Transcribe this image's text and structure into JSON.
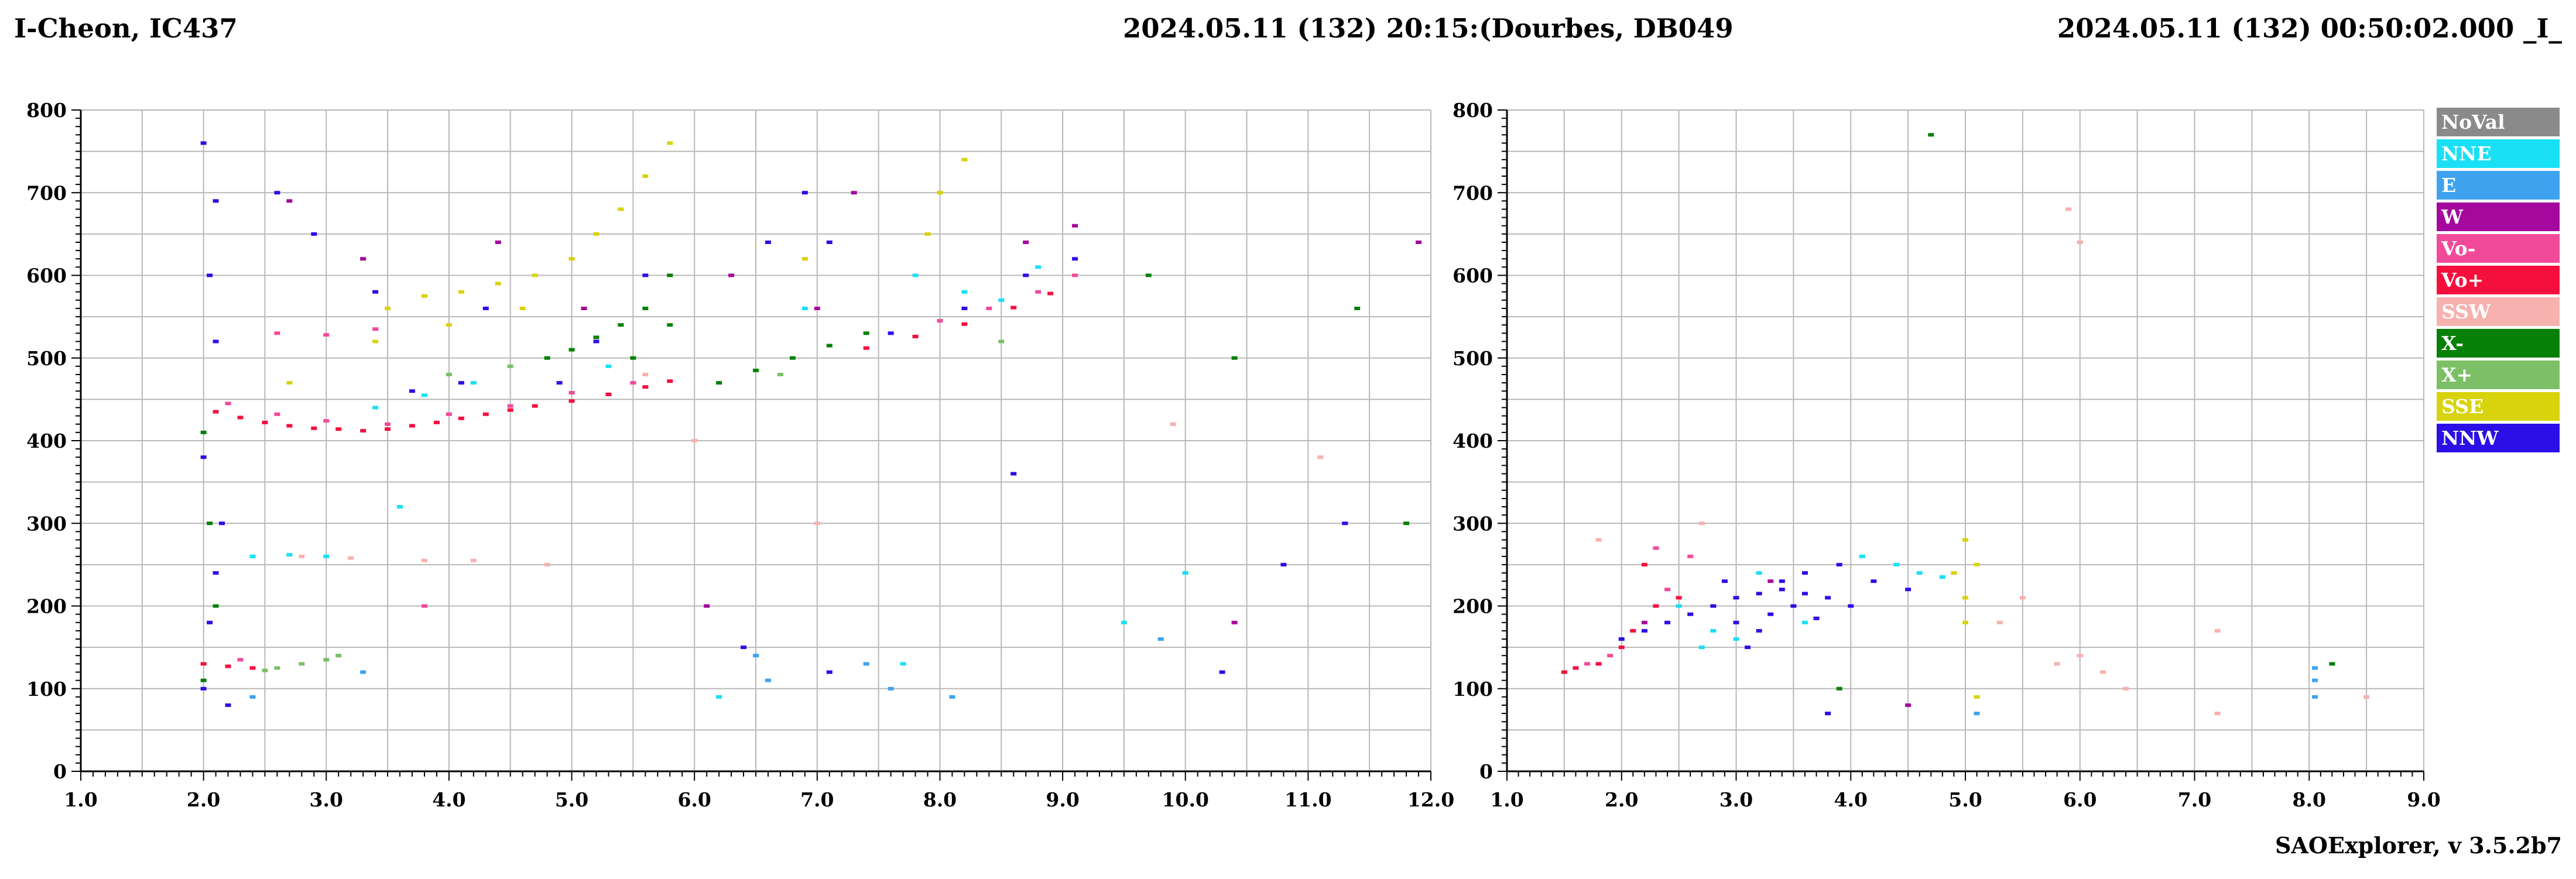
{
  "header": {
    "left": "I-Cheon, IC437",
    "center": "2024.05.11 (132) 20:15:(Dourbes, DB049",
    "right": "2024.05.11 (132) 00:50:02.000 _I_"
  },
  "footer": "SAOExplorer, v 3.5.2b7",
  "legend": [
    {
      "label": "NoVal",
      "color": "#8a8a8a"
    },
    {
      "label": "NNE",
      "color": "#19e0f5"
    },
    {
      "label": "E",
      "color": "#3ea2ee"
    },
    {
      "label": "W",
      "color": "#a4089c"
    },
    {
      "label": "Vo-",
      "color": "#f24a9a"
    },
    {
      "label": "Vo+",
      "color": "#f50f3d"
    },
    {
      "label": "SSW",
      "color": "#f7b1ae"
    },
    {
      "label": "X-",
      "color": "#078007"
    },
    {
      "label": "X+",
      "color": "#7cbf66"
    },
    {
      "label": "SSE",
      "color": "#d8d30c"
    },
    {
      "label": "NNW",
      "color": "#2b0fe6"
    }
  ],
  "chart_data": [
    {
      "type": "scatter",
      "xlim": [
        1.0,
        12.0
      ],
      "ylim": [
        0,
        800
      ],
      "x_ticks": [
        "1.0",
        "2.0",
        "3.0",
        "4.0",
        "5.0",
        "6.0",
        "7.0",
        "8.0",
        "9.0",
        "10.0",
        "11.0",
        "12.0"
      ],
      "y_ticks": [
        "0",
        "100",
        "200",
        "300",
        "400",
        "500",
        "600",
        "700",
        "800"
      ],
      "grid": true,
      "series": [
        {
          "color": "#f50f3d",
          "points": [
            [
              2.1,
              435
            ],
            [
              2.3,
              428
            ],
            [
              2.5,
              422
            ],
            [
              2.7,
              418
            ],
            [
              2.9,
              415
            ],
            [
              3.1,
              414
            ],
            [
              3.3,
              412
            ],
            [
              3.5,
              414
            ],
            [
              3.7,
              418
            ],
            [
              3.9,
              422
            ],
            [
              4.1,
              427
            ],
            [
              4.3,
              432
            ],
            [
              4.5,
              437
            ],
            [
              4.7,
              442
            ],
            [
              5.0,
              448
            ],
            [
              5.3,
              456
            ],
            [
              5.6,
              465
            ],
            [
              5.8,
              472
            ],
            [
              2.0,
              130
            ],
            [
              2.2,
              127
            ],
            [
              2.4,
              125
            ],
            [
              7.4,
              512
            ],
            [
              7.8,
              526
            ],
            [
              8.2,
              541
            ],
            [
              8.6,
              561
            ],
            [
              8.9,
              578
            ]
          ]
        },
        {
          "color": "#f24a9a",
          "points": [
            [
              2.2,
              445
            ],
            [
              2.6,
              432
            ],
            [
              3.0,
              424
            ],
            [
              3.5,
              420
            ],
            [
              4.0,
              432
            ],
            [
              4.5,
              442
            ],
            [
              5.0,
              458
            ],
            [
              5.5,
              470
            ],
            [
              2.6,
              530
            ],
            [
              3.0,
              528
            ],
            [
              3.4,
              535
            ],
            [
              7.6,
              530
            ],
            [
              8.0,
              545
            ],
            [
              8.4,
              560
            ],
            [
              8.8,
              580
            ],
            [
              9.1,
              600
            ],
            [
              2.3,
              135
            ],
            [
              3.8,
              200
            ]
          ]
        },
        {
          "color": "#2b0fe6",
          "points": [
            [
              2.0,
              760
            ],
            [
              2.1,
              690
            ],
            [
              2.05,
              600
            ],
            [
              2.1,
              520
            ],
            [
              2.0,
              380
            ],
            [
              2.15,
              300
            ],
            [
              2.1,
              240
            ],
            [
              2.05,
              180
            ],
            [
              2.0,
              100
            ],
            [
              2.2,
              80
            ],
            [
              2.6,
              700
            ],
            [
              2.9,
              650
            ],
            [
              3.4,
              580
            ],
            [
              3.7,
              460
            ],
            [
              4.1,
              470
            ],
            [
              4.3,
              560
            ],
            [
              4.9,
              470
            ],
            [
              5.2,
              520
            ],
            [
              5.6,
              600
            ],
            [
              6.6,
              640
            ],
            [
              6.9,
              700
            ],
            [
              7.1,
              640
            ],
            [
              7.6,
              530
            ],
            [
              8.2,
              560
            ],
            [
              8.7,
              600
            ],
            [
              9.1,
              620
            ],
            [
              6.4,
              150
            ],
            [
              7.1,
              120
            ],
            [
              8.6,
              360
            ],
            [
              10.3,
              120
            ],
            [
              10.8,
              250
            ],
            [
              11.3,
              300
            ]
          ]
        },
        {
          "color": "#d8d30c",
          "points": [
            [
              3.5,
              560
            ],
            [
              3.8,
              575
            ],
            [
              4.1,
              580
            ],
            [
              4.4,
              590
            ],
            [
              4.7,
              600
            ],
            [
              5.0,
              620
            ],
            [
              5.2,
              650
            ],
            [
              5.4,
              680
            ],
            [
              5.6,
              720
            ],
            [
              5.8,
              760
            ],
            [
              3.4,
              520
            ],
            [
              4.0,
              540
            ],
            [
              4.6,
              560
            ],
            [
              8.0,
              700
            ],
            [
              8.2,
              740
            ],
            [
              7.9,
              650
            ],
            [
              2.7,
              470
            ],
            [
              6.9,
              620
            ]
          ]
        },
        {
          "color": "#078007",
          "points": [
            [
              4.8,
              500
            ],
            [
              5.0,
              510
            ],
            [
              5.2,
              525
            ],
            [
              5.4,
              540
            ],
            [
              5.6,
              560
            ],
            [
              5.8,
              600
            ],
            [
              5.8,
              540
            ],
            [
              5.5,
              500
            ],
            [
              6.2,
              470
            ],
            [
              6.5,
              485
            ],
            [
              6.8,
              500
            ],
            [
              7.1,
              515
            ],
            [
              7.4,
              530
            ],
            [
              2.0,
              410
            ],
            [
              2.05,
              300
            ],
            [
              2.1,
              200
            ],
            [
              2.0,
              110
            ],
            [
              10.4,
              500
            ],
            [
              11.4,
              560
            ],
            [
              11.8,
              300
            ],
            [
              9.7,
              600
            ]
          ]
        },
        {
          "color": "#19e0f5",
          "points": [
            [
              2.4,
              260
            ],
            [
              2.7,
              262
            ],
            [
              3.0,
              260
            ],
            [
              3.4,
              440
            ],
            [
              3.8,
              455
            ],
            [
              4.2,
              470
            ],
            [
              7.8,
              600
            ],
            [
              8.2,
              580
            ],
            [
              8.5,
              570
            ],
            [
              8.8,
              610
            ],
            [
              6.9,
              560
            ],
            [
              5.3,
              490
            ],
            [
              3.6,
              320
            ],
            [
              9.5,
              180
            ],
            [
              10.0,
              240
            ],
            [
              7.7,
              130
            ],
            [
              6.2,
              90
            ]
          ]
        },
        {
          "color": "#7cbf66",
          "points": [
            [
              2.6,
              125
            ],
            [
              2.8,
              130
            ],
            [
              3.0,
              135
            ],
            [
              3.1,
              140
            ],
            [
              2.5,
              122
            ],
            [
              4.0,
              480
            ],
            [
              4.5,
              490
            ],
            [
              6.7,
              480
            ],
            [
              8.5,
              520
            ]
          ]
        },
        {
          "color": "#a4089c",
          "points": [
            [
              2.7,
              690
            ],
            [
              3.3,
              620
            ],
            [
              4.4,
              640
            ],
            [
              5.1,
              560
            ],
            [
              6.3,
              600
            ],
            [
              7.0,
              560
            ],
            [
              7.3,
              700
            ],
            [
              8.7,
              640
            ],
            [
              9.1,
              660
            ],
            [
              6.1,
              200
            ],
            [
              10.4,
              180
            ],
            [
              11.9,
              640
            ]
          ]
        },
        {
          "color": "#f7b1ae",
          "points": [
            [
              2.8,
              260
            ],
            [
              3.2,
              258
            ],
            [
              3.8,
              255
            ],
            [
              4.2,
              255
            ],
            [
              4.8,
              250
            ],
            [
              5.6,
              480
            ],
            [
              6.0,
              400
            ],
            [
              7.0,
              300
            ],
            [
              9.9,
              420
            ],
            [
              11.1,
              380
            ]
          ]
        },
        {
          "color": "#3ea2ee",
          "points": [
            [
              6.5,
              140
            ],
            [
              6.6,
              110
            ],
            [
              7.4,
              130
            ],
            [
              7.6,
              100
            ],
            [
              8.1,
              90
            ],
            [
              9.8,
              160
            ],
            [
              2.4,
              90
            ],
            [
              3.3,
              120
            ]
          ]
        }
      ]
    },
    {
      "type": "scatter",
      "xlim": [
        1.0,
        9.0
      ],
      "ylim": [
        0,
        800
      ],
      "x_ticks": [
        "1.0",
        "2.0",
        "3.0",
        "4.0",
        "5.0",
        "6.0",
        "7.0",
        "8.0",
        "9.0"
      ],
      "y_ticks": [
        "0",
        "100",
        "200",
        "300",
        "400",
        "500",
        "600",
        "700",
        "800"
      ],
      "grid": true,
      "series": [
        {
          "color": "#2b0fe6",
          "points": [
            [
              2.0,
              160
            ],
            [
              2.2,
              170
            ],
            [
              2.4,
              180
            ],
            [
              2.6,
              190
            ],
            [
              2.8,
              200
            ],
            [
              3.0,
              210
            ],
            [
              3.2,
              215
            ],
            [
              3.4,
              220
            ],
            [
              3.6,
              215
            ],
            [
              3.8,
              210
            ],
            [
              3.0,
              180
            ],
            [
              3.2,
              170
            ],
            [
              3.4,
              230
            ],
            [
              3.6,
              240
            ],
            [
              3.9,
              250
            ],
            [
              4.2,
              230
            ],
            [
              4.5,
              220
            ],
            [
              2.9,
              230
            ],
            [
              3.1,
              150
            ],
            [
              3.3,
              190
            ],
            [
              3.5,
              200
            ],
            [
              3.7,
              185
            ],
            [
              4.0,
              200
            ],
            [
              3.8,
              70
            ]
          ]
        },
        {
          "color": "#19e0f5",
          "points": [
            [
              2.5,
              200
            ],
            [
              2.8,
              170
            ],
            [
              3.0,
              160
            ],
            [
              3.2,
              240
            ],
            [
              4.1,
              260
            ],
            [
              4.4,
              250
            ],
            [
              4.6,
              240
            ],
            [
              4.8,
              235
            ],
            [
              3.6,
              180
            ],
            [
              2.7,
              150
            ]
          ]
        },
        {
          "color": "#f50f3d",
          "points": [
            [
              1.5,
              120
            ],
            [
              1.6,
              125
            ],
            [
              1.8,
              130
            ],
            [
              2.0,
              150
            ],
            [
              2.1,
              170
            ],
            [
              2.3,
              200
            ],
            [
              2.5,
              210
            ],
            [
              2.2,
              250
            ]
          ]
        },
        {
          "color": "#f24a9a",
          "points": [
            [
              1.7,
              130
            ],
            [
              1.9,
              140
            ],
            [
              2.4,
              220
            ],
            [
              2.6,
              260
            ],
            [
              2.3,
              270
            ]
          ]
        },
        {
          "color": "#a4089c",
          "points": [
            [
              2.2,
              180
            ],
            [
              3.3,
              230
            ],
            [
              4.5,
              80
            ]
          ]
        },
        {
          "color": "#d8d30c",
          "points": [
            [
              5.0,
              280
            ],
            [
              5.1,
              250
            ],
            [
              5.0,
              210
            ],
            [
              5.0,
              180
            ],
            [
              4.9,
              240
            ],
            [
              5.1,
              90
            ]
          ]
        },
        {
          "color": "#f7b1ae",
          "points": [
            [
              5.5,
              210
            ],
            [
              5.8,
              130
            ],
            [
              6.0,
              140
            ],
            [
              6.2,
              120
            ],
            [
              5.9,
              680
            ],
            [
              6.0,
              640
            ],
            [
              7.2,
              170
            ],
            [
              7.2,
              70
            ],
            [
              8.5,
              90
            ],
            [
              5.3,
              180
            ],
            [
              6.4,
              100
            ],
            [
              1.8,
              280
            ],
            [
              2.7,
              300
            ]
          ]
        },
        {
          "color": "#3ea2ee",
          "points": [
            [
              8.05,
              90
            ],
            [
              8.05,
              110
            ],
            [
              8.05,
              125
            ],
            [
              5.1,
              70
            ]
          ]
        },
        {
          "color": "#078007",
          "points": [
            [
              4.7,
              770
            ],
            [
              8.2,
              130
            ],
            [
              3.9,
              100
            ]
          ]
        }
      ]
    }
  ]
}
